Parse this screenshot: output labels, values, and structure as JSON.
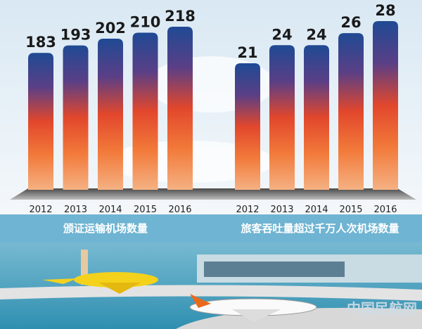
{
  "chart_data": [
    {
      "type": "bar",
      "title": "颁证运输机场数量",
      "categories": [
        "2012",
        "2013",
        "2014",
        "2015",
        "2016"
      ],
      "values": [
        183,
        193,
        202,
        210,
        218
      ]
    },
    {
      "type": "bar",
      "title": "旅客吞吐量超过千万人次机场数量",
      "categories": [
        "2012",
        "2013",
        "2014",
        "2015",
        "2016"
      ],
      "values": [
        21,
        24,
        24,
        26,
        28
      ]
    }
  ],
  "watermark": "中国民航网"
}
